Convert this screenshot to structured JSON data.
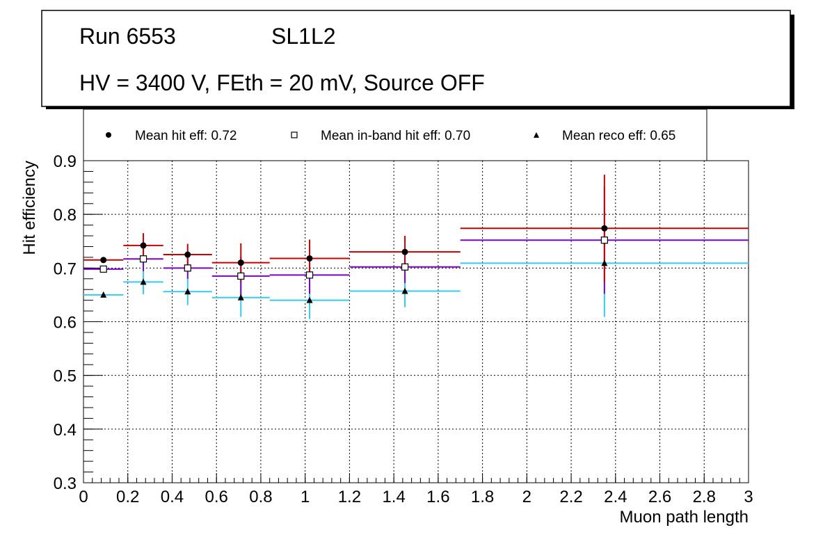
{
  "header": {
    "run_label": "Run 6553",
    "chamber_label": "SL1L2",
    "conditions": "HV = 3400 V, FEth = 20 mV, Source OFF"
  },
  "legend": {
    "entries": [
      {
        "label": "Mean hit  eff: 0.72",
        "marker": "circle-filled"
      },
      {
        "label": "Mean in-band hit eff: 0.70",
        "marker": "square-open"
      },
      {
        "label": "Mean reco eff: 0.65",
        "marker": "triangle-filled"
      }
    ]
  },
  "chart_data": {
    "type": "scatter",
    "title": "",
    "xlabel": "Muon path length",
    "ylabel": "Hit efficiency",
    "xlim": [
      0,
      3
    ],
    "ylim": [
      0.3,
      0.9
    ],
    "grid": true,
    "x_ticks": [
      "0",
      "0.2",
      "0.4",
      "0.6",
      "0.8",
      "1",
      "1.2",
      "1.4",
      "1.6",
      "1.8",
      "2",
      "2.2",
      "2.4",
      "2.6",
      "2.8",
      "3"
    ],
    "y_ticks": [
      "0.3",
      "0.4",
      "0.5",
      "0.6",
      "0.7",
      "0.8",
      "0.9"
    ],
    "bins": [
      [
        0,
        0.18
      ],
      [
        0.18,
        0.36
      ],
      [
        0.36,
        0.58
      ],
      [
        0.58,
        0.84
      ],
      [
        0.84,
        1.2
      ],
      [
        1.2,
        1.7
      ],
      [
        1.7,
        3.0
      ]
    ],
    "x": [
      0.09,
      0.27,
      0.47,
      0.71,
      1.02,
      1.45,
      2.35
    ],
    "series": [
      {
        "name": "Mean hit  eff: 0.72",
        "color": "#cc0000",
        "marker": "circle-filled",
        "values": [
          0.715,
          0.742,
          0.725,
          0.71,
          0.718,
          0.73,
          0.774
        ],
        "errors": [
          0.004,
          0.023,
          0.02,
          0.036,
          0.035,
          0.03,
          0.1
        ]
      },
      {
        "name": "Mean in-band hit eff: 0.70",
        "color": "#7a00cc",
        "marker": "square-open",
        "values": [
          0.698,
          0.717,
          0.7,
          0.685,
          0.687,
          0.702,
          0.752
        ],
        "errors": [
          0.004,
          0.023,
          0.02,
          0.036,
          0.035,
          0.03,
          0.1
        ]
      },
      {
        "name": "Mean reco eff: 0.65",
        "color": "#33ccf2",
        "marker": "triangle-filled",
        "values": [
          0.65,
          0.674,
          0.656,
          0.645,
          0.64,
          0.657,
          0.709
        ],
        "errors": [
          0.004,
          0.023,
          0.025,
          0.036,
          0.035,
          0.03,
          0.1
        ]
      }
    ]
  }
}
